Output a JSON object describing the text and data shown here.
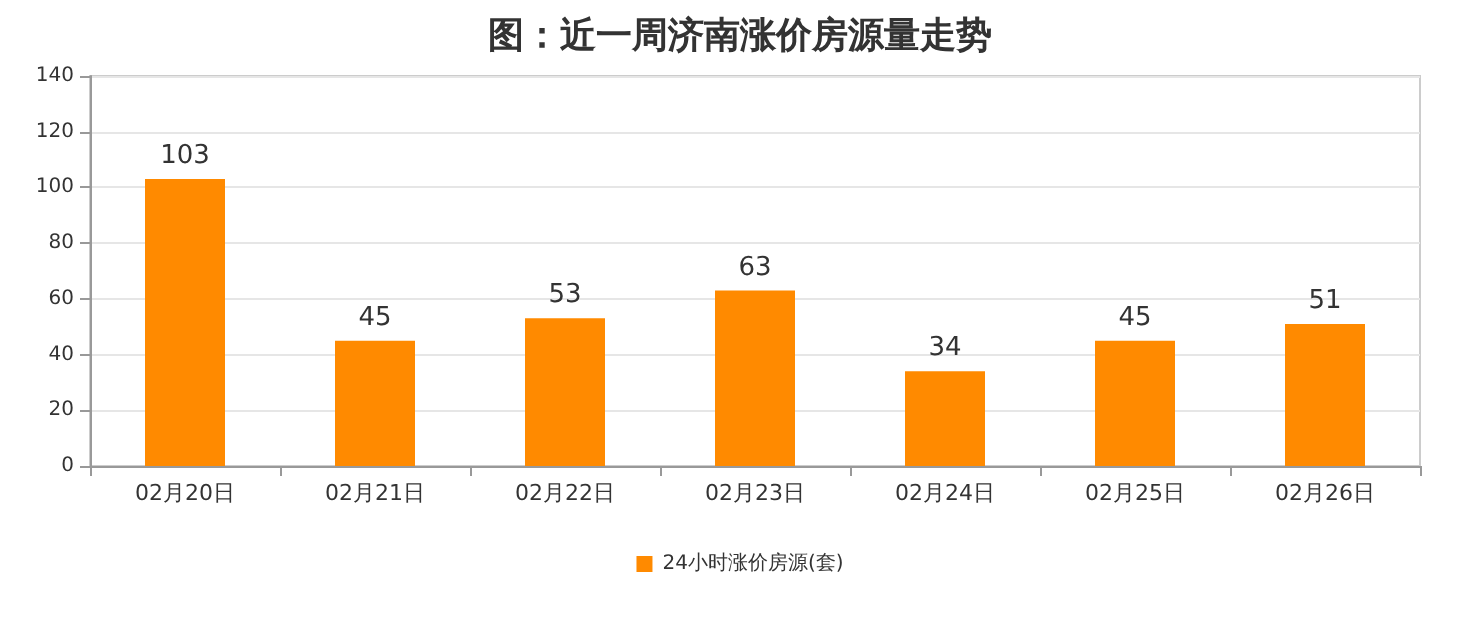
{
  "chart_data": {
    "type": "bar",
    "title": "图：近一周济南涨价房源量走势",
    "categories": [
      "02月20日",
      "02月21日",
      "02月22日",
      "02月23日",
      "02月24日",
      "02月25日",
      "02月26日"
    ],
    "series": [
      {
        "name": "24小时涨价房源(套)",
        "color": "#ff8a00",
        "values": [
          103,
          45,
          53,
          63,
          34,
          45,
          51
        ]
      }
    ],
    "ylim": [
      0,
      140
    ],
    "yticks": [
      0,
      20,
      40,
      60,
      80,
      100,
      120,
      140
    ],
    "grid": "y",
    "legend": "bottom",
    "data_labels": true
  }
}
